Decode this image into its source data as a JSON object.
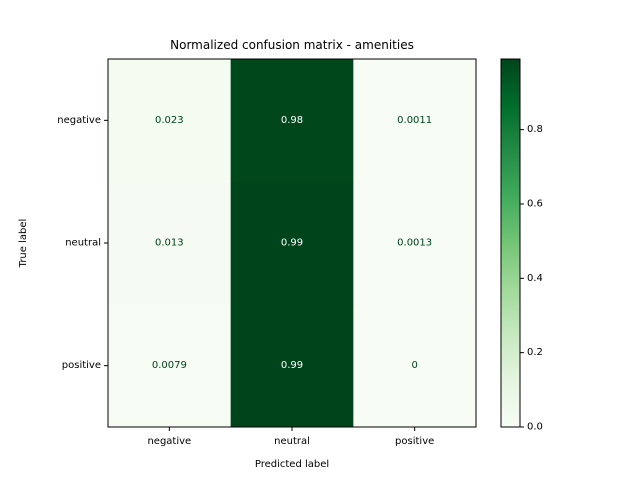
{
  "chart_data": {
    "type": "heatmap",
    "title": "Normalized confusion matrix - amenities",
    "xlabel": "Predicted label",
    "ylabel": "True label",
    "x_categories": [
      "negative",
      "neutral",
      "positive"
    ],
    "y_categories": [
      "negative",
      "neutral",
      "positive"
    ],
    "values": [
      [
        0.023,
        0.98,
        0.0011
      ],
      [
        0.013,
        0.99,
        0.0013
      ],
      [
        0.0079,
        0.99,
        0
      ]
    ],
    "cell_labels": [
      [
        "0.023",
        "0.98",
        "0.0011"
      ],
      [
        "0.013",
        "0.99",
        "0.0013"
      ],
      [
        "0.0079",
        "0.99",
        "0"
      ]
    ],
    "colormap": "Greens",
    "colormap_stops": [
      "#f7fcf5",
      "#e5f5e0",
      "#c7e9c0",
      "#a1d99b",
      "#74c476",
      "#41ab5d",
      "#238b45",
      "#006d2c",
      "#00441b"
    ],
    "color_range": [
      0,
      0.99
    ],
    "colorbar": {
      "ticks": [
        0.0,
        0.2,
        0.4,
        0.6,
        0.8
      ],
      "tick_labels": [
        "0.0",
        "0.2",
        "0.4",
        "0.6",
        "0.8"
      ]
    },
    "text_colors": {
      "dark_cell": "#ffffff",
      "light_cell": "#00441b"
    }
  }
}
